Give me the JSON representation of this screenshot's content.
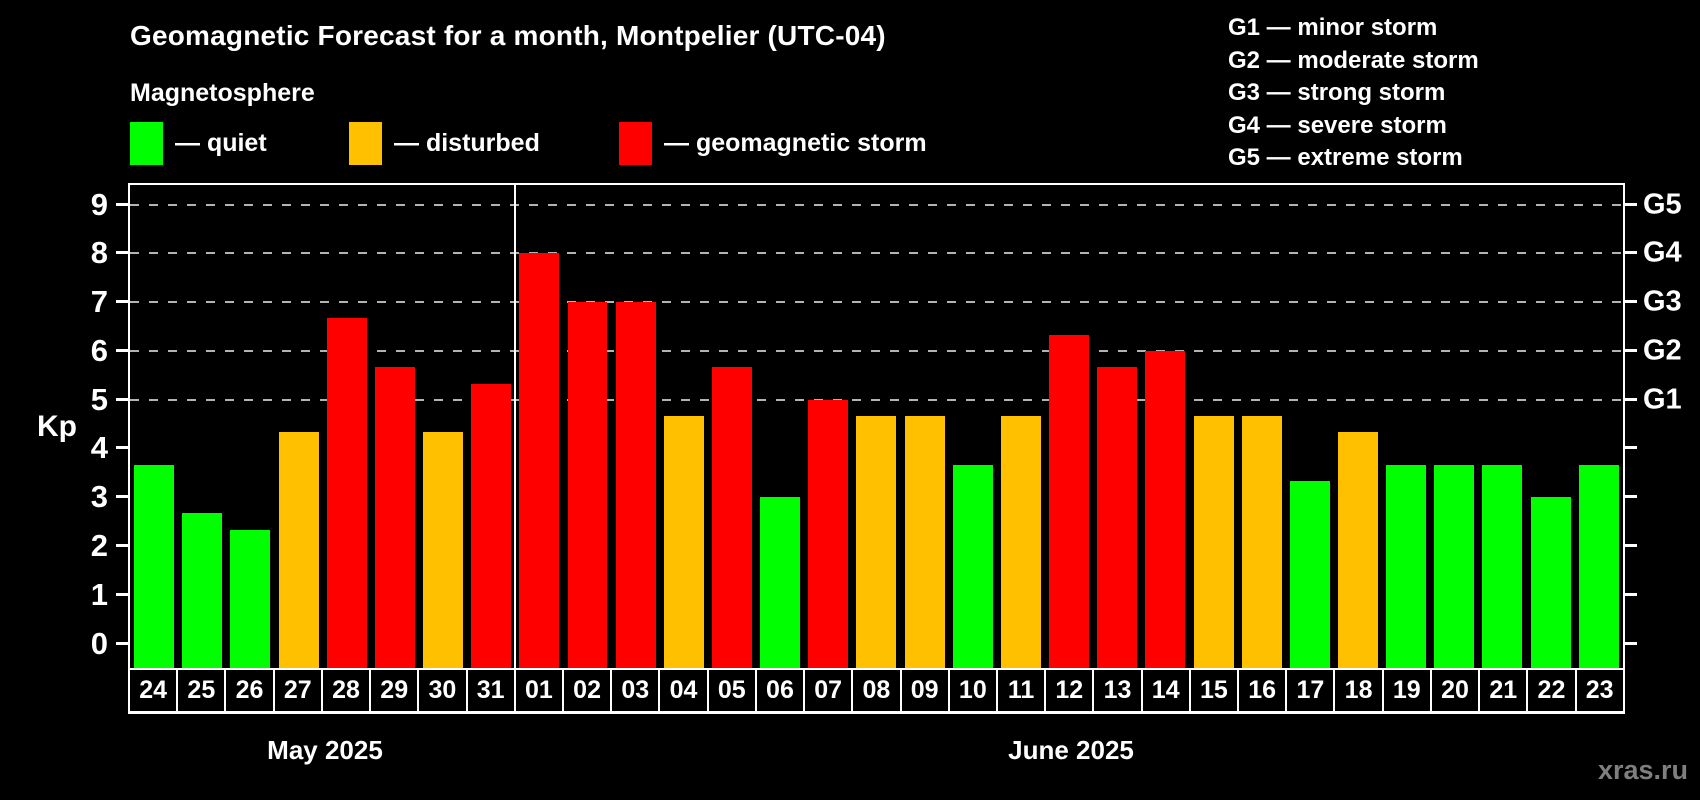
{
  "title": "Geomagnetic Forecast for a month, Montpelier (UTC-04)",
  "subtitle": "Magnetosphere",
  "legend": [
    {
      "key": "quiet",
      "label": "— quiet",
      "color": "#00ff00"
    },
    {
      "key": "disturbed",
      "label": "— disturbed",
      "color": "#ffc000"
    },
    {
      "key": "storm",
      "label": "— geomagnetic storm",
      "color": "#ff0000"
    }
  ],
  "g_legend": [
    "G1 — minor storm",
    "G2 — moderate storm",
    "G3 — strong storm",
    "G4 — severe storm",
    "G5 — extreme storm"
  ],
  "watermark": "xras.ru",
  "chart_data": {
    "type": "bar",
    "ylabel": "Kp",
    "ylim": [
      -0.5,
      9.4
    ],
    "y_ticks": [
      0,
      1,
      2,
      3,
      4,
      5,
      6,
      7,
      8,
      9
    ],
    "gridlines_at": [
      5,
      6,
      7,
      8,
      9
    ],
    "grid": "dashed-horizontal",
    "right_axis_labels": [
      {
        "label": "G1",
        "value": 5
      },
      {
        "label": "G2",
        "value": 6
      },
      {
        "label": "G3",
        "value": 7
      },
      {
        "label": "G4",
        "value": 8
      },
      {
        "label": "G5",
        "value": 9
      }
    ],
    "status_colors": {
      "quiet": "#00ff00",
      "disturbed": "#ffc000",
      "storm": "#ff0000"
    },
    "months": [
      {
        "label": "May 2025",
        "days": 8
      },
      {
        "label": "June 2025",
        "days": 23
      }
    ],
    "bars": [
      {
        "day": "24",
        "kp": 3.67,
        "status": "quiet"
      },
      {
        "day": "25",
        "kp": 2.67,
        "status": "quiet"
      },
      {
        "day": "26",
        "kp": 2.33,
        "status": "quiet"
      },
      {
        "day": "27",
        "kp": 4.33,
        "status": "disturbed"
      },
      {
        "day": "28",
        "kp": 6.67,
        "status": "storm"
      },
      {
        "day": "29",
        "kp": 5.67,
        "status": "storm"
      },
      {
        "day": "30",
        "kp": 4.33,
        "status": "disturbed"
      },
      {
        "day": "31",
        "kp": 5.33,
        "status": "storm"
      },
      {
        "day": "01",
        "kp": 8.0,
        "status": "storm"
      },
      {
        "day": "02",
        "kp": 7.0,
        "status": "storm"
      },
      {
        "day": "03",
        "kp": 7.0,
        "status": "storm"
      },
      {
        "day": "04",
        "kp": 4.67,
        "status": "disturbed"
      },
      {
        "day": "05",
        "kp": 5.67,
        "status": "storm"
      },
      {
        "day": "06",
        "kp": 3.0,
        "status": "quiet"
      },
      {
        "day": "07",
        "kp": 5.0,
        "status": "storm"
      },
      {
        "day": "08",
        "kp": 4.67,
        "status": "disturbed"
      },
      {
        "day": "09",
        "kp": 4.67,
        "status": "disturbed"
      },
      {
        "day": "10",
        "kp": 3.67,
        "status": "quiet"
      },
      {
        "day": "11",
        "kp": 4.67,
        "status": "disturbed"
      },
      {
        "day": "12",
        "kp": 6.33,
        "status": "storm"
      },
      {
        "day": "13",
        "kp": 5.67,
        "status": "storm"
      },
      {
        "day": "14",
        "kp": 6.0,
        "status": "storm"
      },
      {
        "day": "15",
        "kp": 4.67,
        "status": "disturbed"
      },
      {
        "day": "16",
        "kp": 4.67,
        "status": "disturbed"
      },
      {
        "day": "17",
        "kp": 3.33,
        "status": "quiet"
      },
      {
        "day": "18",
        "kp": 4.33,
        "status": "disturbed"
      },
      {
        "day": "19",
        "kp": 3.67,
        "status": "quiet"
      },
      {
        "day": "20",
        "kp": 3.67,
        "status": "quiet"
      },
      {
        "day": "21",
        "kp": 3.67,
        "status": "quiet"
      },
      {
        "day": "22",
        "kp": 3.0,
        "status": "quiet"
      },
      {
        "day": "23",
        "kp": 3.67,
        "status": "quiet"
      }
    ]
  }
}
